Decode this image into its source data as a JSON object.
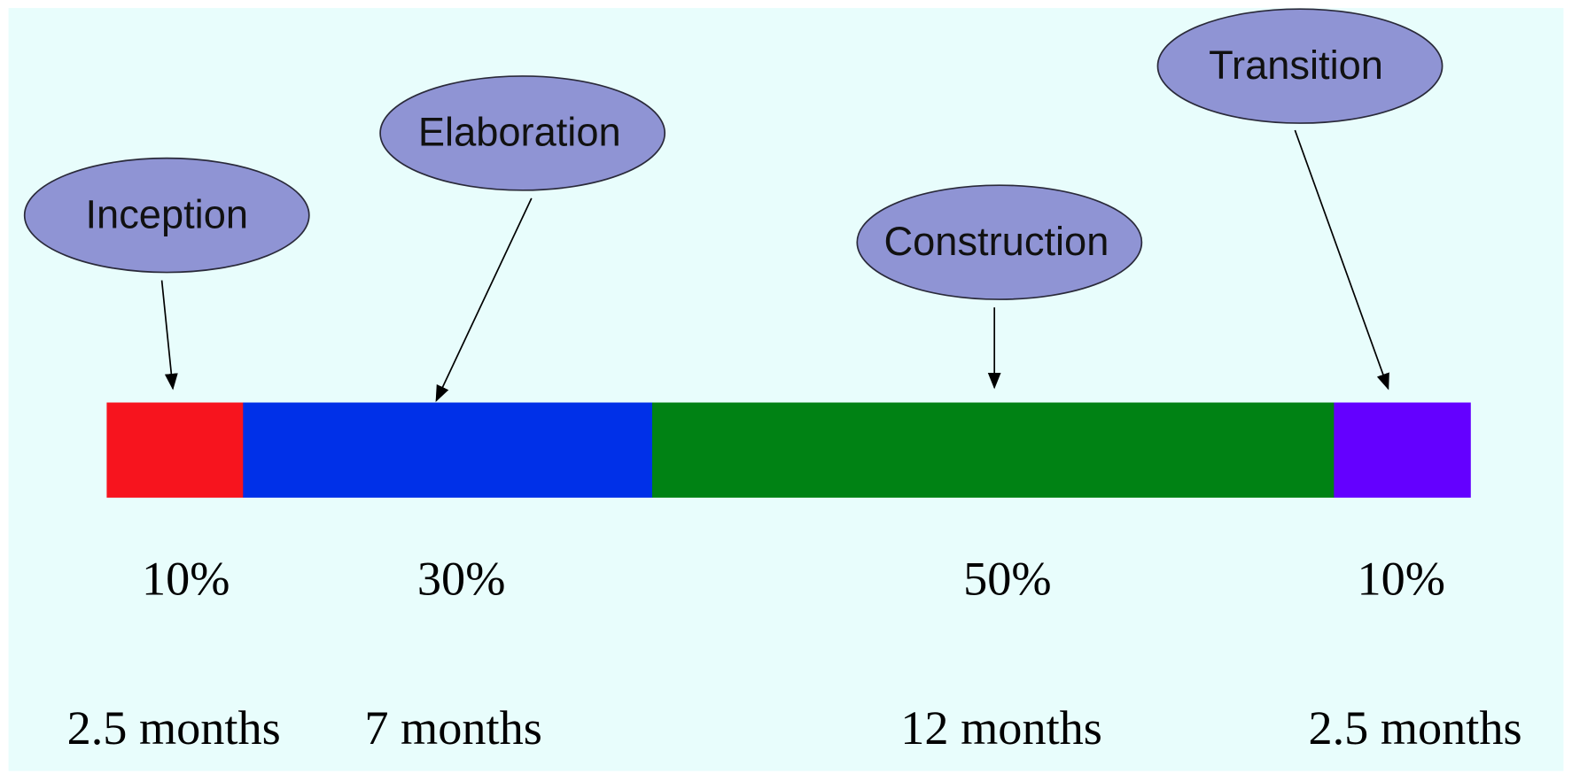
{
  "phases": [
    {
      "name": "Inception",
      "share": 10,
      "share_label": "10%",
      "duration": "2.5 months",
      "color": "#f7141e"
    },
    {
      "name": "Elaboration",
      "share": 30,
      "share_label": "30%",
      "duration": "7 months",
      "color": "#0030e8"
    },
    {
      "name": "Construction",
      "share": 50,
      "share_label": "50%",
      "duration": "12 months",
      "color": "#008214"
    },
    {
      "name": "Transition",
      "share": 10,
      "share_label": "10%",
      "duration": "2.5 months",
      "color": "#6400ff"
    }
  ]
}
